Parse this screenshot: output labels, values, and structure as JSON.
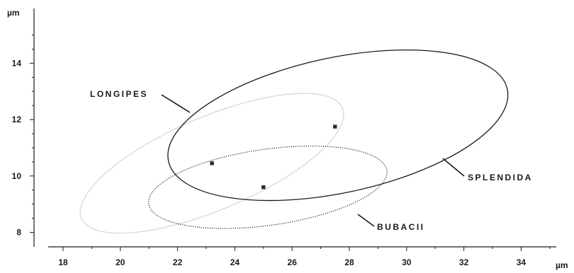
{
  "chart_data": {
    "type": "scatter",
    "title": "",
    "xlabel": "µm",
    "ylabel": "µm",
    "xlim": [
      17,
      36
    ],
    "ylim": [
      7.5,
      15.6
    ],
    "x_ticks": [
      18,
      20,
      22,
      24,
      26,
      28,
      30,
      32,
      34
    ],
    "y_ticks": [
      8,
      10,
      12,
      14
    ],
    "grid": false,
    "series": [
      {
        "name": "LONGIPES",
        "line_style": "light-gray-dotted",
        "color": "#bdbdbd",
        "centroid": {
          "x": 23.2,
          "y": 10.45
        },
        "ellipse": {
          "cx": 23.2,
          "cy": 10.45,
          "semi_axis_a": 4.95,
          "semi_axis_b": 1.65,
          "rotation_deg": 23
        }
      },
      {
        "name": "SPLENDIDA",
        "line_style": "solid",
        "color": "#1a1a1a",
        "centroid": {
          "x": 27.5,
          "y": 11.75
        },
        "ellipse": {
          "cx": 27.6,
          "cy": 11.8,
          "semi_axis_a": 6.05,
          "semi_axis_b": 2.4,
          "rotation_deg": 12
        }
      },
      {
        "name": "BUBACII",
        "line_style": "dark-dotted",
        "color": "#333333",
        "centroid": {
          "x": 25.0,
          "y": 9.6
        },
        "ellipse": {
          "cx": 25.15,
          "cy": 9.6,
          "semi_axis_a": 4.2,
          "semi_axis_b": 1.35,
          "rotation_deg": 8
        }
      }
    ]
  }
}
